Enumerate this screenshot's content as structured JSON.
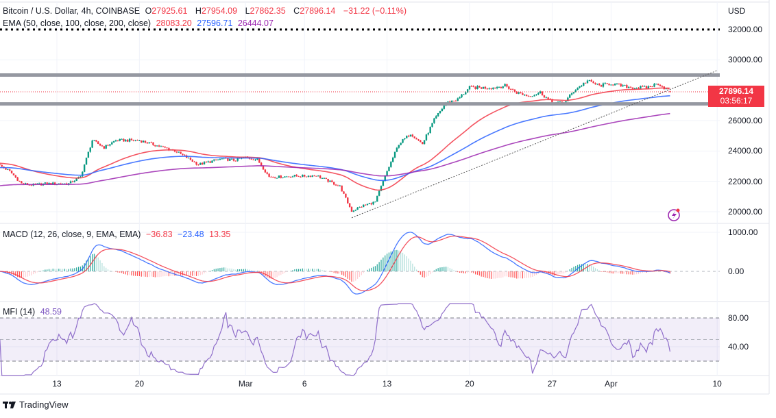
{
  "legend": {
    "symbol": "Bitcoin / U.S. Dollar, 4h, COINBASE",
    "o_label": "O",
    "o": "27925.61",
    "h_label": "H",
    "h": "27954.09",
    "l_label": "L",
    "l": "27862.35",
    "c_label": "C",
    "c": "27896.14",
    "change": "−31.22 (−0.11%)",
    "ema_label": "EMA (50, close, 100, close, 200, close)",
    "ema50": "28083.20",
    "ema100": "27596.71",
    "ema200": "26444.07",
    "macd_label": "MACD (12, 26, close, 9, EMA, EMA)",
    "macd_hist": "−36.83",
    "macd_line": "−23.48",
    "macd_signal": "13.35",
    "mfi_label": "MFI (14)",
    "mfi": "48.59"
  },
  "price_axis": {
    "currency": "USD",
    "ticks": [
      "32000.00",
      "30000.00",
      "26000.00",
      "24000.00",
      "22000.00",
      "20000.00"
    ],
    "last_price": "27896.14",
    "countdown": "03:56:17"
  },
  "macd_axis": {
    "ticks": [
      "1000.00",
      "0.00"
    ]
  },
  "mfi_axis": {
    "ticks": [
      "80.00",
      "40.00"
    ]
  },
  "time_axis": {
    "ticks": [
      {
        "label": "13",
        "date": "Feb 13"
      },
      {
        "label": "20",
        "date": "Feb 20"
      },
      {
        "label": "Mar",
        "date": "Mar 1"
      },
      {
        "label": "6",
        "date": "Mar 6"
      },
      {
        "label": "13",
        "date": "Mar 13"
      },
      {
        "label": "20",
        "date": "Mar 20"
      },
      {
        "label": "27",
        "date": "Mar 27"
      },
      {
        "label": "Apr",
        "date": "Apr 1"
      },
      {
        "label": "10",
        "date": "Apr 10"
      }
    ]
  },
  "branding": {
    "name": "TradingView"
  },
  "colors": {
    "up": "#089981",
    "down": "#f23645",
    "ema50": "#f23645",
    "ema100": "#2962ff",
    "ema200": "#9c27b0",
    "macd": "#2962ff",
    "signal": "#f23645",
    "mfi": "#7e57c2",
    "levels": "#9598a1"
  },
  "chart_data": {
    "type": "candlestick",
    "interval": "4h",
    "ylim": [
      19500,
      32500
    ],
    "dates": [
      "Feb 8",
      "Feb 9",
      "Feb 10",
      "Feb 11",
      "Feb 12",
      "Feb 13",
      "Feb 14",
      "Feb 15",
      "Feb 16",
      "Feb 17",
      "Feb 18",
      "Feb 19",
      "Feb 20",
      "Feb 21",
      "Feb 22",
      "Feb 23",
      "Feb 24",
      "Feb 25",
      "Feb 26",
      "Feb 27",
      "Feb 28",
      "Mar 1",
      "Mar 2",
      "Mar 3",
      "Mar 4",
      "Mar 5",
      "Mar 6",
      "Mar 7",
      "Mar 8",
      "Mar 9",
      "Mar 10",
      "Mar 11",
      "Mar 12",
      "Mar 13",
      "Mar 14",
      "Mar 15",
      "Mar 16",
      "Mar 17",
      "Mar 18",
      "Mar 19",
      "Mar 20",
      "Mar 21",
      "Mar 22",
      "Mar 23",
      "Mar 24",
      "Mar 25",
      "Mar 26",
      "Mar 27",
      "Mar 28",
      "Mar 29",
      "Mar 30",
      "Mar 31",
      "Apr 1",
      "Apr 2",
      "Apr 3",
      "Apr 4",
      "Apr 5",
      "Apr 6"
    ],
    "closes": [
      23110,
      22660,
      21850,
      21760,
      21850,
      21850,
      21850,
      22300,
      24700,
      24240,
      24700,
      24700,
      24700,
      24470,
      24240,
      24020,
      23570,
      23110,
      23300,
      23480,
      23390,
      23570,
      23430,
      22300,
      22300,
      22350,
      22350,
      22390,
      22030,
      21670,
      20050,
      20410,
      20640,
      22660,
      24470,
      25150,
      24470,
      26050,
      27170,
      27400,
      28170,
      28170,
      28170,
      28300,
      27850,
      27620,
      27850,
      27170,
      27170,
      28080,
      28620,
      28300,
      28440,
      28260,
      28170,
      28170,
      28440,
      27896.14
    ],
    "last_candle": {
      "open": 27925.61,
      "high": 27954.09,
      "low": 27862.35,
      "close": 27896.14
    },
    "indicators": {
      "ema": [
        50,
        100,
        200
      ],
      "macd": [
        12,
        26,
        9
      ],
      "mfi": 14
    },
    "horizontal_levels": [
      29000,
      27100,
      32000
    ],
    "trendline": {
      "from": {
        "date": "Mar 10",
        "price": 19600
      },
      "to": {
        "date": "Apr 10",
        "price": 29300
      }
    }
  }
}
